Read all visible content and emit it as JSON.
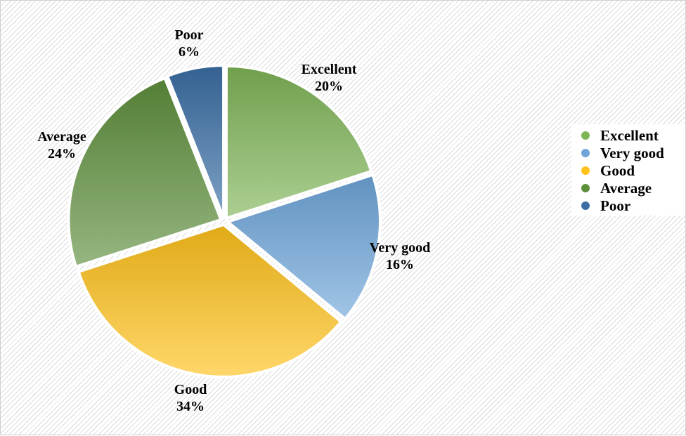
{
  "chart_data": {
    "type": "pie",
    "slices": [
      {
        "label": "Excellent",
        "value": 20,
        "value_label": "20%",
        "color": "#7fb557"
      },
      {
        "label": "Very good",
        "value": 16,
        "value_label": "16%",
        "color": "#6ea6da"
      },
      {
        "label": "Good",
        "value": 34,
        "value_label": "34%",
        "color": "#ffc11a"
      },
      {
        "label": "Average",
        "value": 24,
        "value_label": "24%",
        "color": "#5e8f3c"
      },
      {
        "label": "Poor",
        "value": 6,
        "value_label": "6%",
        "color": "#3a6ea5"
      }
    ],
    "legend": [
      "Excellent",
      "Very good",
      "Good",
      "Average",
      "Poor"
    ],
    "legend_position": "right"
  }
}
